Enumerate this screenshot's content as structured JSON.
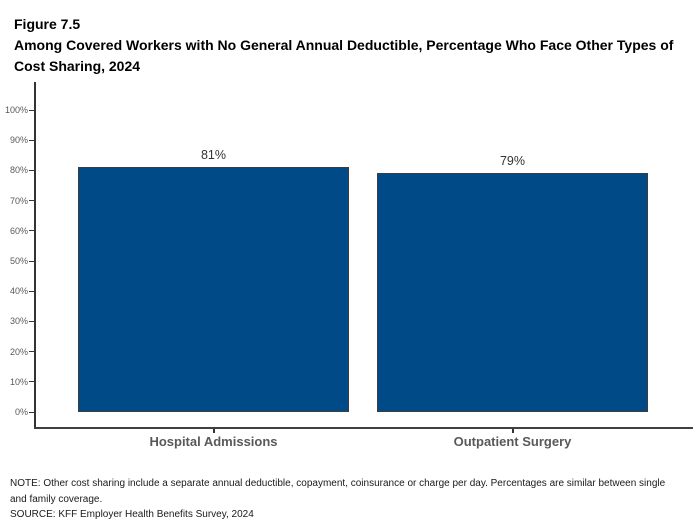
{
  "figure": {
    "label": "Figure 7.5",
    "title": "Among Covered Workers with No General Annual Deductible, Percentage Who Face Other Types of Cost Sharing, 2024"
  },
  "chart_data": {
    "type": "bar",
    "categories": [
      "Hospital Admissions",
      "Outpatient Surgery"
    ],
    "values": [
      81,
      79
    ],
    "value_labels": [
      "81%",
      "79%"
    ],
    "title": "Among Covered Workers with No General Annual Deductible, Percentage Who Face Other Types of Cost Sharing, 2024",
    "xlabel": "",
    "ylabel": "",
    "ylim": [
      0,
      100
    ],
    "ytick_values": [
      0,
      10,
      20,
      30,
      40,
      50,
      60,
      70,
      80,
      90,
      100
    ],
    "ytick_labels": [
      "0%",
      "10%",
      "20%",
      "30%",
      "40%",
      "50%",
      "60%",
      "70%",
      "80%",
      "90%",
      "100%"
    ],
    "grid": false,
    "legend": "none",
    "bar_color": "#004B87",
    "bar_border_color": "#3D3D3D",
    "axis_color": "#333333",
    "tick_label_color": "#595959"
  },
  "notes": {
    "note": "NOTE: Other cost sharing include a separate annual deductible, copayment, coinsurance or charge per day. Percentages are similar between single and family coverage.",
    "source": "SOURCE: KFF Employer Health Benefits Survey, 2024"
  }
}
